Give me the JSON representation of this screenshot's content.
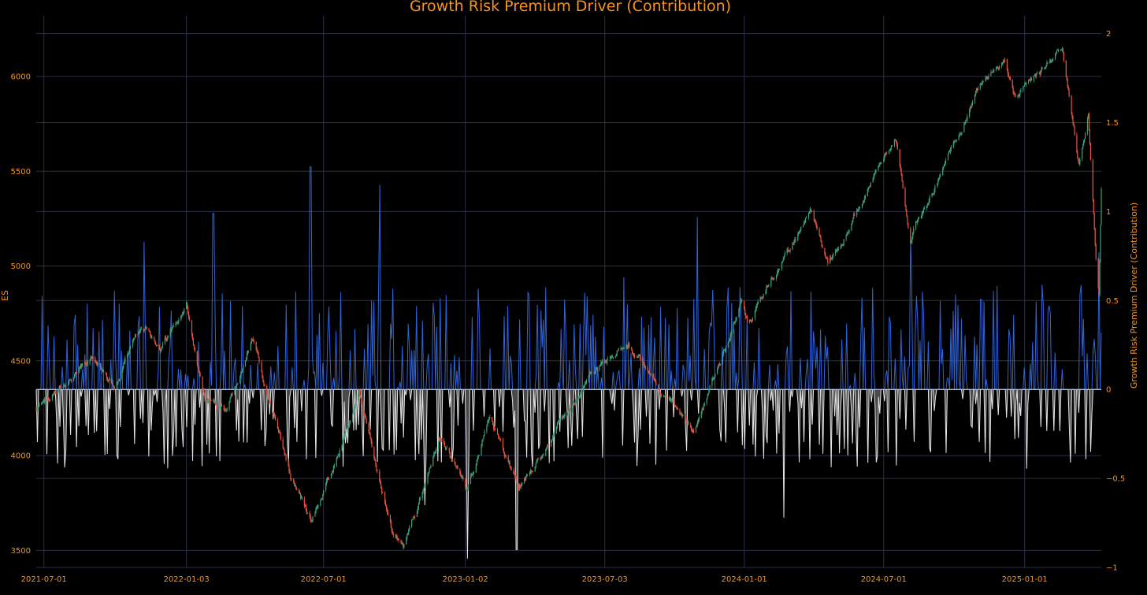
{
  "chart_data": {
    "type": "line",
    "title": "Growth Risk Premium Driver (Contribution)",
    "x_axis": {
      "type": "date",
      "range": [
        "2021-06-21",
        "2025-04-11"
      ],
      "tick_labels": [
        "2021-07-01",
        "2022-01-03",
        "2022-07-01",
        "2023-01-02",
        "2023-07-03",
        "2024-01-01",
        "2024-07-01",
        "2025-01-01"
      ]
    },
    "y_left": {
      "label": "ES",
      "range": [
        3410,
        6320
      ],
      "ticks": [
        3500,
        4000,
        4500,
        5000,
        5500,
        6000
      ],
      "tick_labels": [
        "3500",
        "4000",
        "4500",
        "5000",
        "5500",
        "6000"
      ]
    },
    "y_right": {
      "label": "Growth Risk Premium Driver (Contribution)",
      "range": [
        -1,
        2.1
      ],
      "ticks": [
        -1,
        -0.5,
        0,
        0.5,
        1,
        1.5,
        2
      ],
      "tick_labels": [
        "−1",
        "−0.5",
        "0",
        "0.5",
        "1",
        "1.5",
        "2"
      ]
    },
    "grid": true,
    "colors": {
      "background": "#000000",
      "text": "#f7941d",
      "grid": "#2a3046",
      "up_candle": "#3aa37c",
      "down_candle": "#e8553f",
      "positive_contribution": "#2f63d8",
      "negative_contribution": "#e6e6e6",
      "negative_fill": "#4a4a4a"
    },
    "series": [
      {
        "type": "candlestick",
        "axis": "left",
        "anchors": [
          [
            "2021-06-21",
            4240
          ],
          [
            "2021-07-15",
            4330
          ],
          [
            "2021-09-01",
            4530
          ],
          [
            "2021-09-30",
            4350
          ],
          [
            "2021-11-05",
            4700
          ],
          [
            "2021-12-01",
            4560
          ],
          [
            "2022-01-03",
            4790
          ],
          [
            "2022-01-27",
            4300
          ],
          [
            "2022-02-24",
            4230
          ],
          [
            "2022-03-29",
            4620
          ],
          [
            "2022-05-20",
            3880
          ],
          [
            "2022-06-16",
            3650
          ],
          [
            "2022-08-16",
            4310
          ],
          [
            "2022-09-30",
            3580
          ],
          [
            "2022-10-13",
            3500
          ],
          [
            "2022-11-30",
            4080
          ],
          [
            "2023-01-05",
            3820
          ],
          [
            "2023-02-02",
            4190
          ],
          [
            "2023-03-13",
            3820
          ],
          [
            "2023-06-15",
            4430
          ],
          [
            "2023-07-31",
            4600
          ],
          [
            "2023-10-27",
            4120
          ],
          [
            "2023-12-28",
            4810
          ],
          [
            "2024-01-05",
            4700
          ],
          [
            "2024-03-28",
            5290
          ],
          [
            "2024-04-19",
            5000
          ],
          [
            "2024-07-16",
            5690
          ],
          [
            "2024-08-05",
            5160
          ],
          [
            "2024-09-06",
            5420
          ],
          [
            "2024-11-11",
            6020
          ],
          [
            "2024-12-06",
            6090
          ],
          [
            "2024-12-20",
            5880
          ],
          [
            "2025-02-19",
            6150
          ],
          [
            "2025-03-13",
            5530
          ],
          [
            "2025-03-25",
            5800
          ],
          [
            "2025-04-04",
            5060
          ],
          [
            "2025-04-08",
            4850
          ],
          [
            "2025-04-11",
            5400
          ]
        ]
      },
      {
        "name": "Growth Risk Premium Driver (Contribution)",
        "type": "line",
        "axis": "right",
        "peaks": [
          [
            "2021-11-09",
            0.83
          ],
          [
            "2022-02-07",
            0.99
          ],
          [
            "2022-06-14",
            1.25
          ],
          [
            "2022-09-13",
            1.15
          ],
          [
            "2022-11-10",
            -0.65
          ],
          [
            "2023-01-05",
            -0.95
          ],
          [
            "2023-03-10",
            -0.9
          ],
          [
            "2023-07-28",
            0.63
          ],
          [
            "2023-11-01",
            0.97
          ],
          [
            "2024-02-22",
            -0.72
          ],
          [
            "2024-08-05",
            0.87
          ],
          [
            "2025-04-08",
            0.77
          ]
        ]
      }
    ]
  }
}
